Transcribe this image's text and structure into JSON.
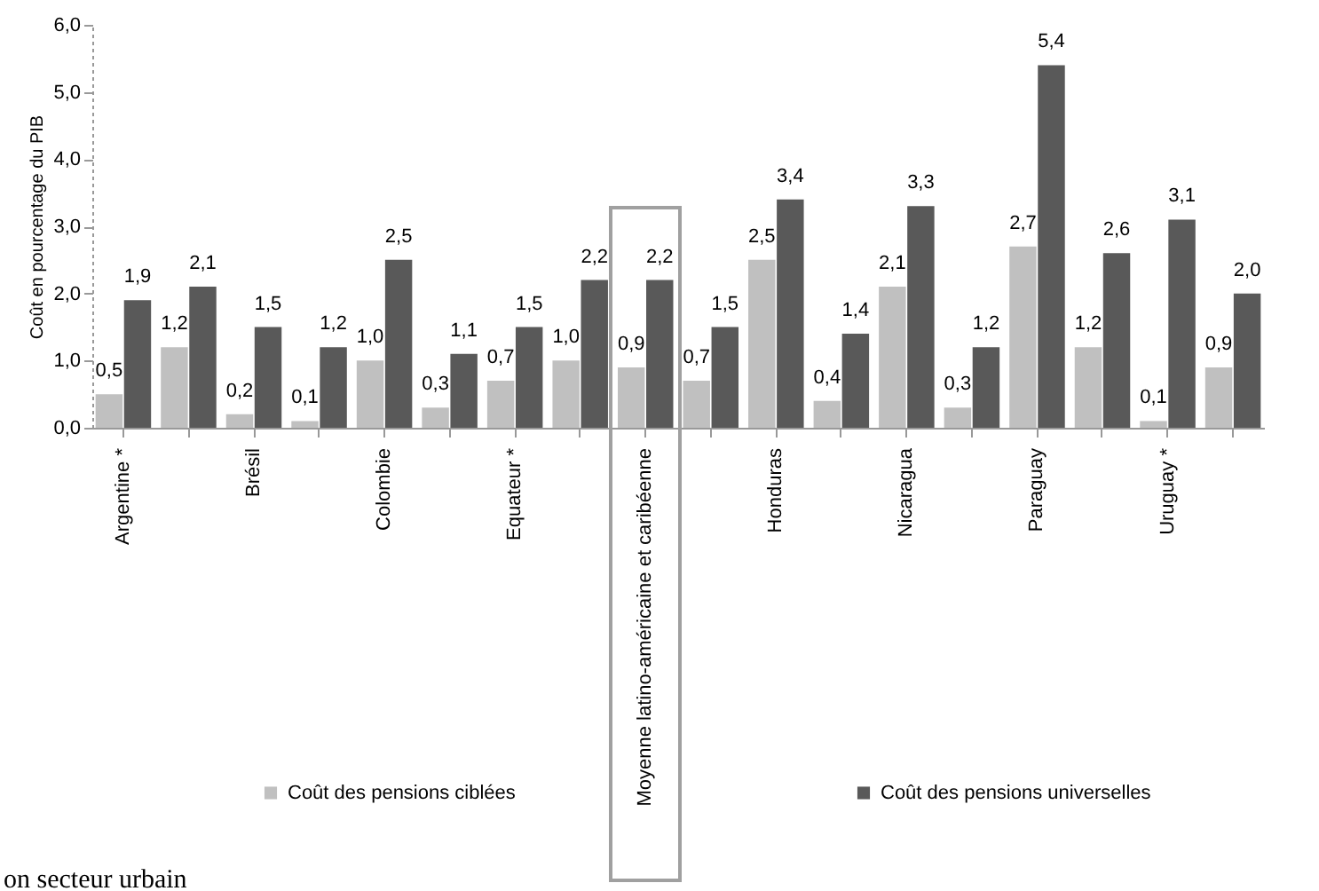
{
  "chart_data": {
    "type": "bar",
    "ylabel": "Coût en pourcentage du PIB",
    "categories": [
      "Argentine *",
      null,
      "Brésil",
      null,
      "Colombie",
      null,
      "Equateur *",
      null,
      "Moyenne latino-américaine et caribéenne",
      null,
      "Honduras",
      null,
      "Nicaragua",
      null,
      "Paraguay",
      null,
      "Uruguay *",
      null
    ],
    "series": [
      {
        "name": "Coût des pensions ciblées",
        "color": "#c0c0c0",
        "values": [
          0.5,
          1.2,
          0.2,
          0.1,
          1.0,
          0.3,
          0.7,
          1.0,
          0.9,
          0.7,
          2.5,
          0.4,
          2.1,
          0.3,
          2.7,
          1.2,
          0.1,
          0.9
        ],
        "value_labels": [
          "0,5",
          "1,2",
          "0,2",
          "0,1",
          "1,0",
          "0,3",
          "0,7",
          "1,0",
          "0,9",
          "0,7",
          "2,5",
          "0,4",
          "2,1",
          "0,3",
          "2,7",
          "1,2",
          "0,1",
          "0,9"
        ]
      },
      {
        "name": "Coût des pensions universelles",
        "color": "#595959",
        "values": [
          1.9,
          2.1,
          1.5,
          1.2,
          2.5,
          1.1,
          1.5,
          2.2,
          2.2,
          1.5,
          3.4,
          1.4,
          3.3,
          1.2,
          5.4,
          2.6,
          3.1,
          2.0
        ],
        "value_labels": [
          "1,9",
          "2,1",
          "1,5",
          "1,2",
          "2,5",
          "1,1",
          "1,5",
          "2,2",
          "2,2",
          "1,5",
          "3,4",
          "1,4",
          "3,3",
          "1,2",
          "5,4",
          "2,6",
          "3,1",
          "2,0"
        ]
      }
    ],
    "ylim": [
      0,
      6
    ],
    "yticks": [
      {
        "value": 0,
        "label": "0,0"
      },
      {
        "value": 1,
        "label": "1,0"
      },
      {
        "value": 2,
        "label": "2,0"
      },
      {
        "value": 3,
        "label": "3,0"
      },
      {
        "value": 4,
        "label": "4,0"
      },
      {
        "value": 5,
        "label": "5,0"
      },
      {
        "value": 6,
        "label": "6,0"
      }
    ],
    "legend": "bottom",
    "annotations": [
      "on secteur urbain"
    ]
  }
}
